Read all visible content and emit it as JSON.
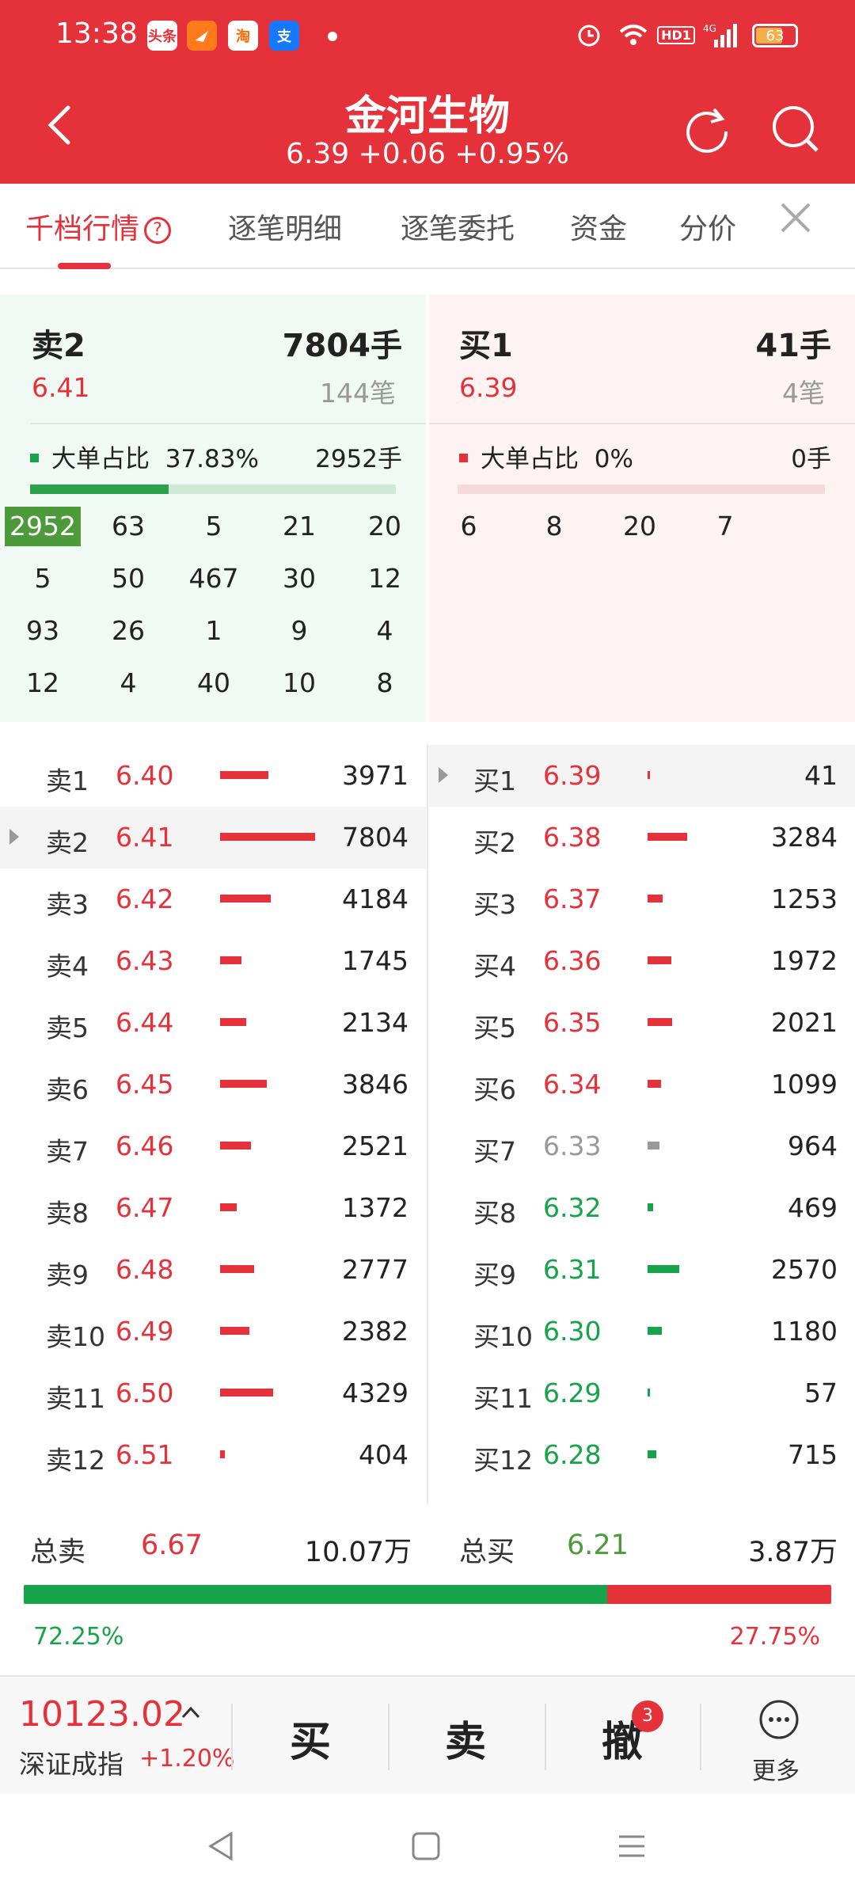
{
  "status_bar": {
    "time": "13:38",
    "battery": "63",
    "apps": [
      "头条",
      "淘",
      "支"
    ]
  },
  "header": {
    "stock_name": "金河生物",
    "quote": "6.39 +0.06 +0.95%"
  },
  "tabs": [
    "千档行情",
    "逐笔明细",
    "逐笔委托",
    "资金",
    "分价"
  ],
  "help_icon": "?",
  "sell_summary": {
    "title": "卖2",
    "price": "6.41",
    "volume": "7804手",
    "count": "144笔",
    "big_label": "大单占比",
    "big_pct": "37.83%",
    "big_vol": "2952手",
    "big_ratio": 0.3783,
    "grid": [
      [
        "2952",
        "63",
        "5",
        "21",
        "20"
      ],
      [
        "5",
        "50",
        "467",
        "30",
        "12"
      ],
      [
        "93",
        "26",
        "1",
        "9",
        "4"
      ],
      [
        "12",
        "4",
        "40",
        "10",
        "8"
      ]
    ]
  },
  "buy_summary": {
    "title": "买1",
    "price": "6.39",
    "volume": "41手",
    "count": "4笔",
    "big_label": "大单占比",
    "big_pct": "0%",
    "big_vol": "0手",
    "big_ratio": 0,
    "grid": [
      [
        "6",
        "8",
        "20",
        "7"
      ]
    ]
  },
  "sell_book": [
    {
      "label": "卖1",
      "price": "6.40",
      "vol": "3971",
      "c": "r"
    },
    {
      "label": "卖2",
      "price": "6.41",
      "vol": "7804",
      "c": "r"
    },
    {
      "label": "卖3",
      "price": "6.42",
      "vol": "4184",
      "c": "r"
    },
    {
      "label": "卖4",
      "price": "6.43",
      "vol": "1745",
      "c": "r"
    },
    {
      "label": "卖5",
      "price": "6.44",
      "vol": "2134",
      "c": "r"
    },
    {
      "label": "卖6",
      "price": "6.45",
      "vol": "3846",
      "c": "r"
    },
    {
      "label": "卖7",
      "price": "6.46",
      "vol": "2521",
      "c": "r"
    },
    {
      "label": "卖8",
      "price": "6.47",
      "vol": "1372",
      "c": "r"
    },
    {
      "label": "卖9",
      "price": "6.48",
      "vol": "2777",
      "c": "r"
    },
    {
      "label": "卖10",
      "price": "6.49",
      "vol": "2382",
      "c": "r"
    },
    {
      "label": "卖11",
      "price": "6.50",
      "vol": "4329",
      "c": "r"
    },
    {
      "label": "卖12",
      "price": "6.51",
      "vol": "404",
      "c": "r"
    }
  ],
  "buy_book": [
    {
      "label": "买1",
      "price": "6.39",
      "vol": "41",
      "c": "r"
    },
    {
      "label": "买2",
      "price": "6.38",
      "vol": "3284",
      "c": "r"
    },
    {
      "label": "买3",
      "price": "6.37",
      "vol": "1253",
      "c": "r"
    },
    {
      "label": "买4",
      "price": "6.36",
      "vol": "1972",
      "c": "r"
    },
    {
      "label": "买5",
      "price": "6.35",
      "vol": "2021",
      "c": "r"
    },
    {
      "label": "买6",
      "price": "6.34",
      "vol": "1099",
      "c": "r"
    },
    {
      "label": "买7",
      "price": "6.33",
      "vol": "964",
      "c": "g"
    },
    {
      "label": "买8",
      "price": "6.32",
      "vol": "469",
      "c": "gr"
    },
    {
      "label": "买9",
      "price": "6.31",
      "vol": "2570",
      "c": "gr"
    },
    {
      "label": "买10",
      "price": "6.30",
      "vol": "1180",
      "c": "gr"
    },
    {
      "label": "买11",
      "price": "6.29",
      "vol": "57",
      "c": "gr"
    },
    {
      "label": "买12",
      "price": "6.28",
      "vol": "715",
      "c": "gr"
    }
  ],
  "totals": {
    "sell_label": "总卖",
    "sell_price": "6.67",
    "sell_vol": "10.07万",
    "buy_label": "总买",
    "buy_price": "6.21",
    "buy_vol": "3.87万",
    "left_pct": "72.25%",
    "right_pct": "27.75%",
    "left_ratio": 0.7225
  },
  "toolbar": {
    "index_value": "10123.02",
    "index_name": "深证成指",
    "index_change": "+1.20%",
    "buy": "买",
    "sell": "卖",
    "cancel": "撤",
    "badge": "3",
    "more": "更多"
  },
  "colors": {
    "red": "#e5323a",
    "green": "#16a34a",
    "gray": "#999999",
    "accent_green": "#4c9a3a"
  }
}
